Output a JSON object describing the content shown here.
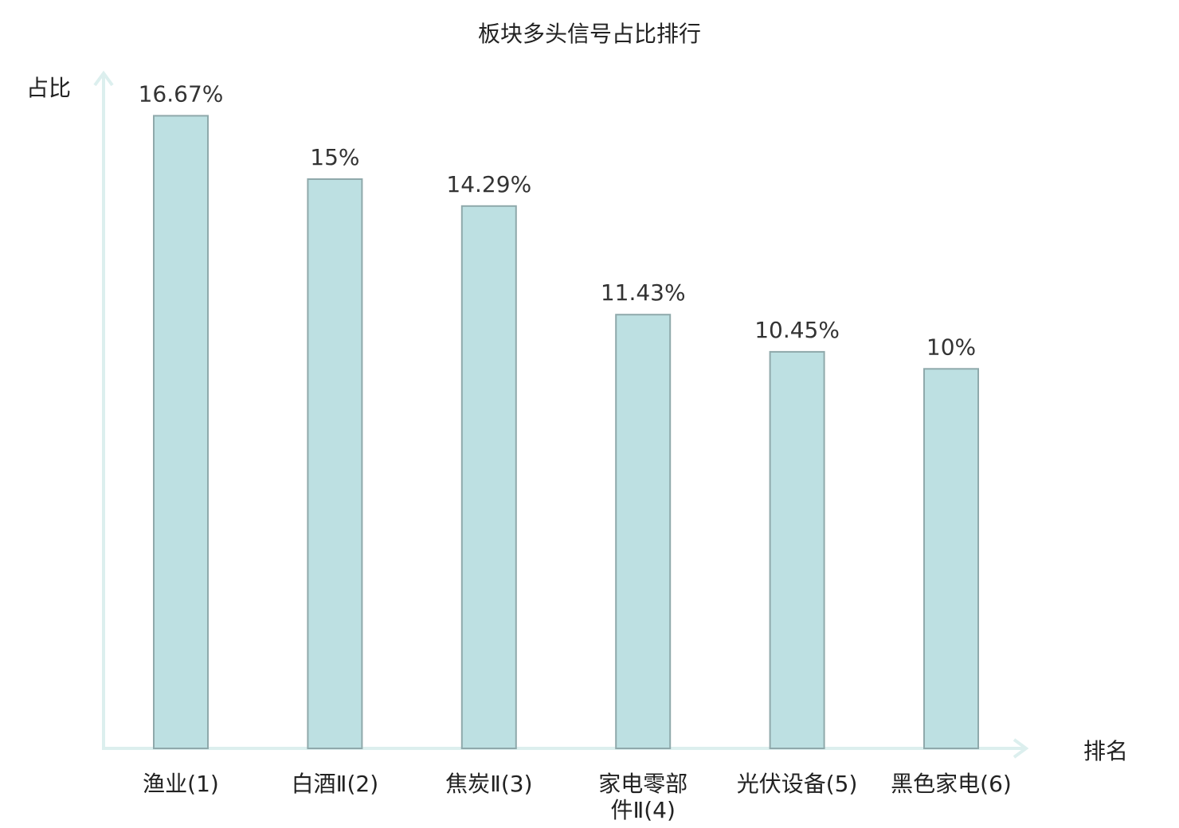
{
  "chart_data": {
    "type": "bar",
    "title": "板块多头信号占比排行",
    "ylabel": "占比",
    "xlabel": "排名",
    "categories": [
      [
        "渔业(1)"
      ],
      [
        "白酒Ⅱ(2)"
      ],
      [
        "焦炭Ⅱ(3)"
      ],
      [
        "家电零部",
        "件Ⅱ(4)"
      ],
      [
        "光伏设备(5)"
      ],
      [
        "黑色家电(6)"
      ]
    ],
    "values": [
      16.67,
      15,
      14.29,
      11.43,
      10.45,
      10
    ],
    "value_labels": [
      "16.67%",
      "15%",
      "14.29%",
      "11.43%",
      "10.45%",
      "10%"
    ],
    "ylim": [
      0,
      18
    ],
    "grid": false,
    "highlight_index": 5,
    "colors": {
      "bar_fill": "#bde0e2",
      "bar_stroke": "#8fa9ab",
      "axis": "#dcefee",
      "text": "#222222",
      "highlight_text": "#e8131b"
    }
  }
}
